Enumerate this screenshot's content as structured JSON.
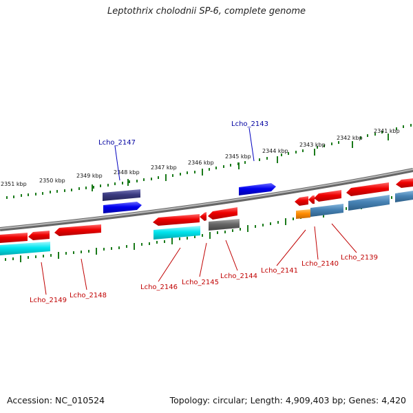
{
  "title": "Leptothrix cholodnii SP-6, complete genome",
  "footer": {
    "accession": "Accession: NC_010524",
    "summary": "Topology: circular; Length: 4,909,403 bp; Genes: 4,420"
  },
  "tick_labels": [
    "2351 kbp",
    "2350 kbp",
    "2349 kbp",
    "2348 kbp",
    "2347 kbp",
    "2346 kbp",
    "2345 kbp",
    "2344 kbp",
    "2343 kbp",
    "2342 kbp",
    "2341 kbp"
  ],
  "gene_labels": {
    "top": [
      "Lcho_2147",
      "Lcho_2143"
    ],
    "bottom": [
      "Lcho_2149",
      "Lcho_2148",
      "Lcho_2146",
      "Lcho_2145",
      "Lcho_2144",
      "Lcho_2141",
      "Lcho_2140",
      "Lcho_2139"
    ]
  },
  "colors": {
    "cds_red": "#ee0000",
    "rna_cyan": "#00e5ee",
    "blue_gene": "#0000ee",
    "dark_blue": "#3a3a80",
    "steel_blue": "#4682b4",
    "gray_gene": "#666666",
    "orange_gene": "#ff8c00",
    "tick_green": "#1a7a1a",
    "backbone": "#888888"
  }
}
